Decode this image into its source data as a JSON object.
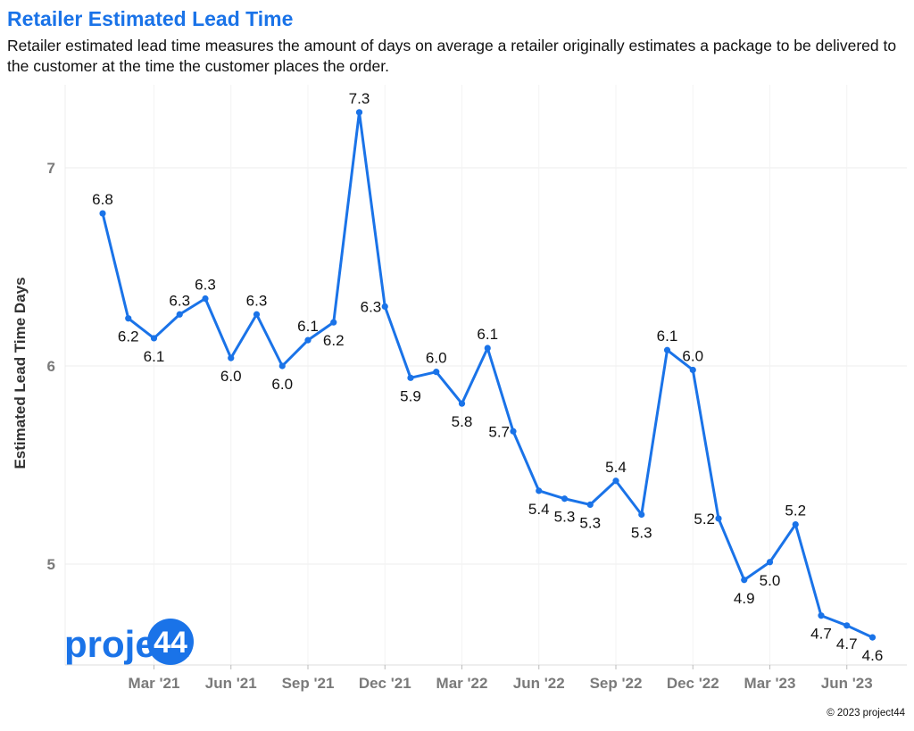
{
  "title": "Retailer Estimated Lead Time",
  "subtitle": "Retailer estimated lead time measures the amount of days on average a retailer originally estimates a package to be delivered to the customer at the time the customer places the order.",
  "logo": {
    "prefix": "project",
    "suffix": "44"
  },
  "copyright": "© 2023 project44",
  "colors": {
    "line": "#1a73e8",
    "grid": "#ececec",
    "title": "#1a73e8"
  },
  "chart_data": {
    "type": "line",
    "title": "Retailer Estimated Lead Time",
    "xlabel": "",
    "ylabel": "Estimated Lead Time Days",
    "ylim": [
      4.5,
      7.4
    ],
    "yticks": [
      5,
      6,
      7
    ],
    "grid": true,
    "x": [
      "2021-01",
      "2021-02",
      "2021-03",
      "2021-04",
      "2021-05",
      "2021-06",
      "2021-07",
      "2021-08",
      "2021-09",
      "2021-10",
      "2021-11",
      "2021-12",
      "2022-01",
      "2022-02",
      "2022-03",
      "2022-04",
      "2022-05",
      "2022-06",
      "2022-07",
      "2022-08",
      "2022-09",
      "2022-10",
      "2022-11",
      "2022-12",
      "2023-01",
      "2023-02",
      "2023-03",
      "2023-04",
      "2023-05",
      "2023-06",
      "2023-07"
    ],
    "xticks": [
      {
        "x": "2021-03",
        "label": "Mar '21"
      },
      {
        "x": "2021-06",
        "label": "Jun '21"
      },
      {
        "x": "2021-09",
        "label": "Sep '21"
      },
      {
        "x": "2021-12",
        "label": "Dec '21"
      },
      {
        "x": "2022-03",
        "label": "Mar '22"
      },
      {
        "x": "2022-06",
        "label": "Jun '22"
      },
      {
        "x": "2022-09",
        "label": "Sep '22"
      },
      {
        "x": "2022-12",
        "label": "Dec '22"
      },
      {
        "x": "2023-03",
        "label": "Mar '23"
      },
      {
        "x": "2023-06",
        "label": "Jun '23"
      }
    ],
    "series": [
      {
        "values": [
          6.77,
          6.24,
          6.14,
          6.26,
          6.34,
          6.04,
          6.26,
          6.0,
          6.13,
          6.22,
          7.28,
          6.3,
          5.94,
          5.97,
          5.81,
          6.09,
          5.67,
          5.37,
          5.33,
          5.3,
          5.42,
          5.25,
          6.08,
          5.98,
          5.23,
          4.92,
          5.01,
          5.2,
          4.74,
          4.69,
          4.63
        ],
        "labels": [
          "6.8",
          "6.2",
          "6.1",
          "6.3",
          "6.3",
          "6.0",
          "6.3",
          "6.0",
          "6.1",
          "6.2",
          "7.3",
          "6.3",
          "5.9",
          "6.0",
          "5.8",
          "6.1",
          "5.7",
          "5.4",
          "5.3",
          "5.3",
          "5.4",
          "5.3",
          "6.1",
          "6.0",
          "5.2",
          "4.9",
          "5.0",
          "5.2",
          "4.7",
          "4.7",
          "4.6"
        ],
        "label_position": [
          "above",
          "below",
          "below",
          "above",
          "above",
          "below",
          "above",
          "below",
          "above",
          "below",
          "above",
          "left",
          "below",
          "above",
          "below",
          "above",
          "left",
          "below",
          "below",
          "below",
          "above",
          "below",
          "above",
          "above",
          "left",
          "below",
          "below",
          "above",
          "below",
          "below",
          "below"
        ]
      }
    ]
  }
}
